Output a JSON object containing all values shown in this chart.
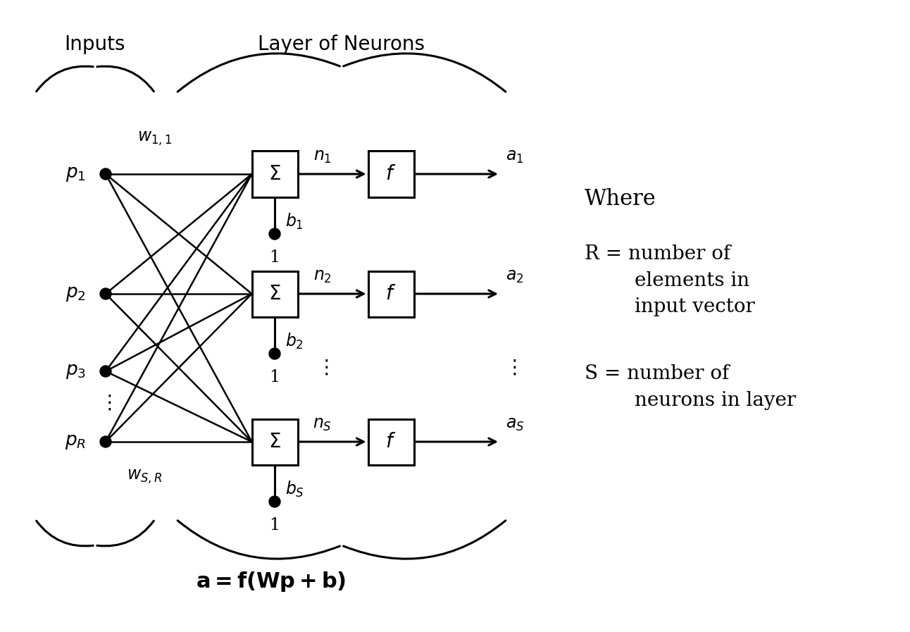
{
  "bg_color": "#ffffff",
  "input_labels": [
    "p_1",
    "p_2",
    "p_3",
    "p_R"
  ],
  "input_dots": true,
  "neuron_rows": 3,
  "w_11_label": "w_{1,1}",
  "w_SR_label": "w_{S,R}",
  "b_labels": [
    "b_1",
    "b_2",
    "b_S"
  ],
  "n_labels": [
    "n_1",
    "n_2",
    "n_S"
  ],
  "a_labels": [
    "a_1",
    "a_2",
    "a_S"
  ],
  "equation": "a = f(Wp + b)",
  "where_text": "Where",
  "R_text": "R = number of\n      elements in\n      input vector",
  "S_text": "S = number of\n      neurons in layer",
  "title_inputs": "Inputs",
  "title_neurons": "Layer of Neurons"
}
